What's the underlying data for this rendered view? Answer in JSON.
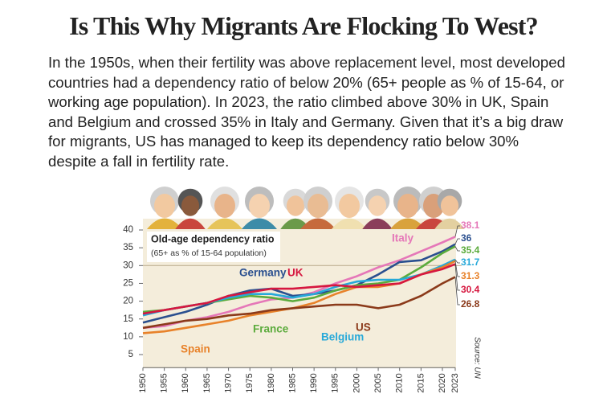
{
  "chart_data": {
    "type": "line",
    "title": "Is This Why Migrants Are Flocking To West?",
    "subtitle": "In the 1950s, when their fertility was above replacement level, most developed countries had a dependency ratio of below 20%  (65+ people as % of 15-64, or working age population). In 2023, the ratio climbed above 30% in UK, Spain and Belgium and crossed 35% in Italy and Germany. Given that it’s a big draw for migrants, US has managed to keep its dependency ratio below 30% despite a fall in fertility rate.",
    "legend_title": "Old-age dependency ratio",
    "legend_subtitle": "(65+  as % of 15-64 population)",
    "source": "Source: UN",
    "x": [
      1950,
      1955,
      1960,
      1965,
      1970,
      1975,
      1980,
      1985,
      1990,
      1995,
      2000,
      2005,
      2010,
      2015,
      2020,
      2023
    ],
    "xlim": [
      1950,
      2023
    ],
    "xticks": [
      1950,
      1955,
      1960,
      1965,
      1970,
      1975,
      1980,
      1985,
      1990,
      1995,
      2000,
      2005,
      2010,
      2015,
      2020,
      2023
    ],
    "ylim": [
      2,
      41
    ],
    "yticks": [
      5,
      10,
      15,
      20,
      25,
      30,
      35,
      40
    ],
    "reference_line": 30,
    "series": [
      {
        "name": "Italy",
        "color": "#e577b8",
        "values": [
          12.5,
          13,
          14.5,
          15.5,
          17,
          19,
          20.5,
          21,
          22.5,
          25,
          27,
          29.5,
          31.5,
          34,
          36.5,
          38.1
        ]
      },
      {
        "name": "Germany",
        "color": "#2a4f8f",
        "values": [
          14,
          15.5,
          17,
          19,
          21.5,
          23,
          23.5,
          21.5,
          22,
          23,
          24.5,
          27.5,
          31,
          31.5,
          34,
          36
        ]
      },
      {
        "name": "France",
        "color": "#5bab3c",
        "values": [
          17,
          17.5,
          18.5,
          19.5,
          20.5,
          21.5,
          21,
          20,
          21,
          23,
          24.5,
          25,
          26,
          29.5,
          33.5,
          35.4
        ]
      },
      {
        "name": "Belgium",
        "color": "#27a9d9",
        "values": [
          16,
          17.5,
          18.5,
          19.5,
          21,
          22,
          22,
          21,
          22,
          24,
          25.5,
          26,
          26,
          27.5,
          30,
          31.7
        ]
      },
      {
        "name": "Spain",
        "color": "#e8822a",
        "values": [
          11,
          11.5,
          12.5,
          13.5,
          14.5,
          16,
          17,
          18,
          19.5,
          22,
          24,
          24,
          25,
          27.5,
          29.5,
          31.3
        ]
      },
      {
        "name": "UK",
        "color": "#d6173f",
        "values": [
          16.5,
          17.5,
          18.5,
          19.5,
          21.5,
          22.5,
          23.5,
          23.5,
          24,
          24.5,
          24,
          24.5,
          25,
          27.5,
          29,
          30.4
        ]
      },
      {
        "name": "US",
        "color": "#8b3a1a",
        "values": [
          12.5,
          13.5,
          14.5,
          15,
          16,
          16.5,
          17.5,
          18,
          18.5,
          19,
          19,
          18,
          19,
          21.5,
          25,
          26.8
        ]
      }
    ]
  }
}
